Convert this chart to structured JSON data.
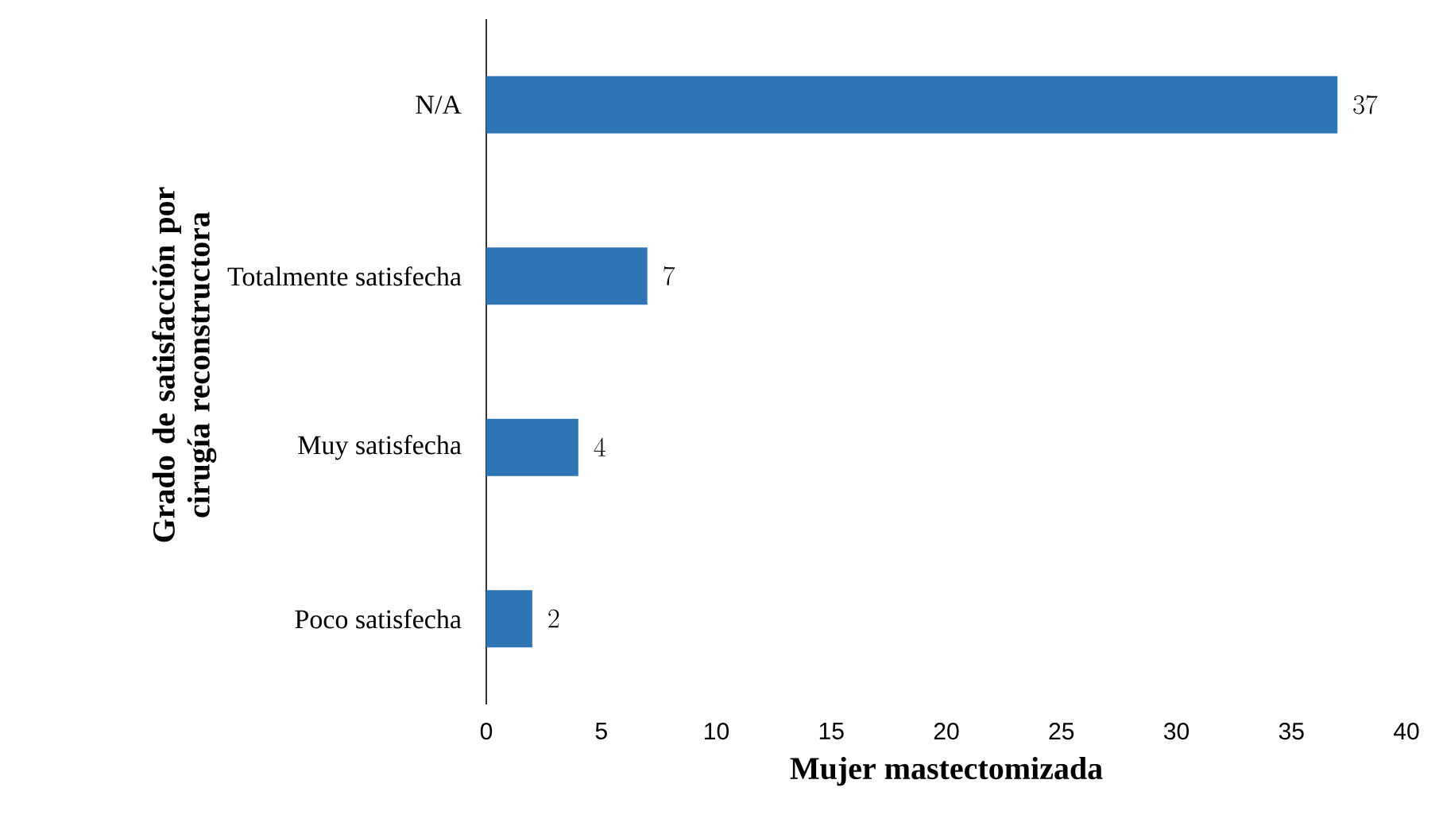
{
  "chart_data": {
    "type": "bar",
    "orientation": "horizontal",
    "xlabel": "Mujer mastectomizada",
    "ylabel": "Grado de satisfacción por cirugía reconstructora",
    "categories": [
      "N/A",
      "Totalmente satisfecha",
      "Muy satisfecha",
      "Poco satisfecha"
    ],
    "values": [
      37,
      7,
      4,
      2
    ],
    "color": "#2e75b6",
    "xlim": [
      0,
      40
    ],
    "xticks": [
      0,
      5,
      10,
      15,
      20,
      25,
      30,
      35,
      40
    ],
    "data_labels": true
  }
}
